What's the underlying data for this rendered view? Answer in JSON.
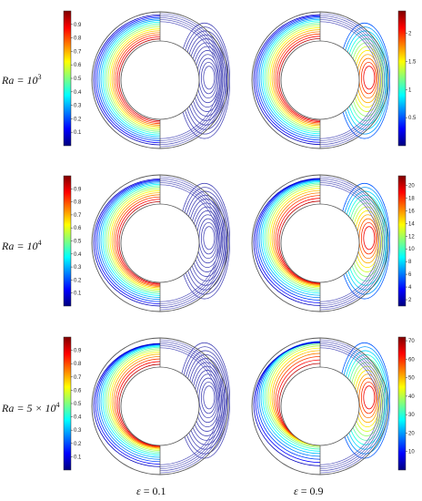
{
  "rows": [
    {
      "ra_prefix": "Ra",
      "ra_eq": "= ",
      "ra_base": "10",
      "ra_exp": "3"
    },
    {
      "ra_prefix": "Ra",
      "ra_eq": "= ",
      "ra_base": "10",
      "ra_exp": "4"
    },
    {
      "ra_prefix": "Ra",
      "ra_eq": "= 5 × ",
      "ra_base": "10",
      "ra_exp": "4"
    }
  ],
  "columns": [
    {
      "eps_symbol": "ε",
      "eps_value": " = 0.1"
    },
    {
      "eps_symbol": "ε",
      "eps_value": " = 0.9"
    }
  ],
  "colorbars": [
    {
      "ticks": [
        "0.9",
        "0.8",
        "0.7",
        "0.6",
        "0.5",
        "0.4",
        "0.3",
        "0.2",
        "0.1"
      ],
      "min": 0.0,
      "max": 1.0
    },
    {
      "ticks": [
        "2",
        "1.5",
        "1",
        "0.5"
      ],
      "min": 0.0,
      "max": 2.4
    },
    {
      "ticks": [
        "0.9",
        "0.8",
        "0.7",
        "0.6",
        "0.5",
        "0.4",
        "0.3",
        "0.2",
        "0.1"
      ],
      "min": 0.0,
      "max": 1.0
    },
    {
      "ticks": [
        "20",
        "18",
        "16",
        "14",
        "12",
        "10",
        "8",
        "6",
        "4",
        "2"
      ],
      "min": 1.0,
      "max": 21.5
    },
    {
      "ticks": [
        "0.9",
        "0.8",
        "0.7",
        "0.6",
        "0.5",
        "0.4",
        "0.3",
        "0.2",
        "0.1"
      ],
      "min": 0.0,
      "max": 1.0
    },
    {
      "ticks": [
        "70",
        "60",
        "50",
        "40",
        "30",
        "20",
        "10"
      ],
      "min": 0.0,
      "max": 72.0
    }
  ],
  "colors": {
    "jet": [
      "#00007f",
      "#0000ff",
      "#007fff",
      "#00ffff",
      "#7fff7f",
      "#ffff00",
      "#ff7f00",
      "#ff0000",
      "#7f0000"
    ],
    "stream": "#4a4ab8",
    "outline": "#555555"
  }
}
